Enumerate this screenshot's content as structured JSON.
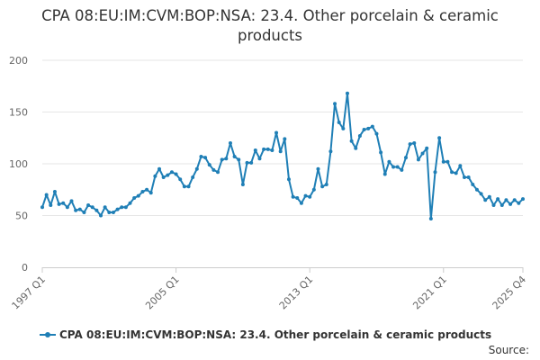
{
  "chart_data": {
    "type": "line",
    "title": "CPA 08:EU:IM:CVM:BOP:NSA: 23.4. Other porcelain & ceramic products",
    "xlabel": "",
    "ylabel": "",
    "ylim": [
      0,
      200
    ],
    "yticks": [
      "0",
      "50",
      "100",
      "150",
      "200"
    ],
    "xtick_labels": [
      "1997 Q1",
      "2005 Q1",
      "2013 Q1",
      "2021 Q1",
      "2025 Q4"
    ],
    "grid": true,
    "legend_position": "bottom",
    "color": "#1f7fb6",
    "series": [
      {
        "name": "CPA 08:EU:IM:CVM:BOP:NSA: 23.4. Other porcelain & ceramic products",
        "x": [
          "1997 Q1",
          "1997 Q2",
          "1997 Q3",
          "1997 Q4",
          "1998 Q1",
          "1998 Q2",
          "1998 Q3",
          "1998 Q4",
          "1999 Q1",
          "1999 Q2",
          "1999 Q3",
          "1999 Q4",
          "2000 Q1",
          "2000 Q2",
          "2000 Q3",
          "2000 Q4",
          "2001 Q1",
          "2001 Q2",
          "2001 Q3",
          "2001 Q4",
          "2002 Q1",
          "2002 Q2",
          "2002 Q3",
          "2002 Q4",
          "2003 Q1",
          "2003 Q2",
          "2003 Q3",
          "2003 Q4",
          "2004 Q1",
          "2004 Q2",
          "2004 Q3",
          "2004 Q4",
          "2005 Q1",
          "2005 Q2",
          "2005 Q3",
          "2005 Q4",
          "2006 Q1",
          "2006 Q2",
          "2006 Q3",
          "2006 Q4",
          "2007 Q1",
          "2007 Q2",
          "2007 Q3",
          "2007 Q4",
          "2008 Q1",
          "2008 Q2",
          "2008 Q3",
          "2008 Q4",
          "2009 Q1",
          "2009 Q2",
          "2009 Q3",
          "2009 Q4",
          "2010 Q1",
          "2010 Q2",
          "2010 Q3",
          "2010 Q4",
          "2011 Q1",
          "2011 Q2",
          "2011 Q3",
          "2011 Q4",
          "2012 Q1",
          "2012 Q2",
          "2012 Q3",
          "2012 Q4",
          "2013 Q1",
          "2013 Q2",
          "2013 Q3",
          "2013 Q4",
          "2014 Q1",
          "2014 Q2",
          "2014 Q3",
          "2014 Q4",
          "2015 Q1",
          "2015 Q2",
          "2015 Q3",
          "2015 Q4",
          "2016 Q1",
          "2016 Q2",
          "2016 Q3",
          "2016 Q4",
          "2017 Q1",
          "2017 Q2",
          "2017 Q3",
          "2017 Q4",
          "2018 Q1",
          "2018 Q2",
          "2018 Q3",
          "2018 Q4",
          "2019 Q1",
          "2019 Q2",
          "2019 Q3",
          "2019 Q4",
          "2020 Q1",
          "2020 Q2",
          "2020 Q3",
          "2020 Q4",
          "2021 Q1",
          "2021 Q2",
          "2021 Q3",
          "2021 Q4",
          "2022 Q1",
          "2022 Q2",
          "2022 Q3",
          "2022 Q4",
          "2023 Q1",
          "2023 Q2",
          "2023 Q3",
          "2023 Q4",
          "2024 Q1",
          "2024 Q2",
          "2024 Q3",
          "2024 Q4",
          "2025 Q1",
          "2025 Q2",
          "2025 Q3",
          "2025 Q4"
        ],
        "values": [
          58,
          70,
          60,
          73,
          61,
          62,
          58,
          64,
          55,
          56,
          53,
          60,
          58,
          55,
          50,
          58,
          53,
          53,
          56,
          58,
          58,
          62,
          67,
          69,
          73,
          75,
          72,
          88,
          95,
          87,
          89,
          92,
          90,
          85,
          78,
          78,
          87,
          95,
          107,
          106,
          99,
          94,
          92,
          104,
          105,
          120,
          107,
          104,
          80,
          101,
          101,
          113,
          105,
          114,
          114,
          113,
          130,
          112,
          124,
          85,
          68,
          67,
          62,
          69,
          68,
          75,
          95,
          78,
          80,
          112,
          158,
          140,
          134,
          168,
          122,
          115,
          127,
          133,
          134,
          136,
          129,
          111,
          90,
          102,
          97,
          97,
          94,
          106,
          119,
          120,
          104,
          110,
          115,
          47,
          92,
          125,
          102,
          102,
          92,
          91,
          98,
          87,
          87,
          80,
          75,
          71,
          65,
          68,
          60,
          66,
          60,
          65,
          61,
          65,
          62,
          66
        ]
      }
    ]
  },
  "legend": {
    "label": "CPA 08:EU:IM:CVM:BOP:NSA: 23.4. Other porcelain & ceramic products"
  },
  "footer": {
    "source_label": "Source:"
  }
}
